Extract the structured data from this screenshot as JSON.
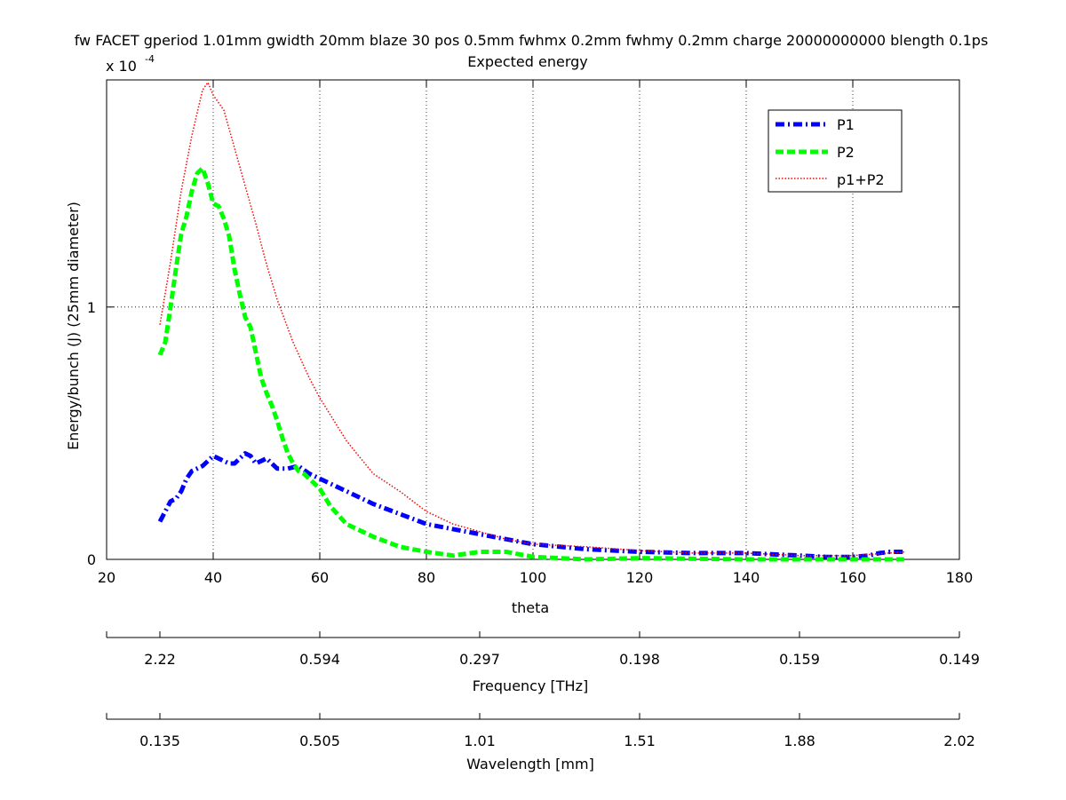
{
  "figure": {
    "title_line1": "fw FACET gperiod 1.01mm gwidth 20mm blaze 30 pos 0.5mm fwhmx 0.2mm fwhmy 0.2mm charge 20000000000 blength 0.1ps",
    "title_line2": "Expected energy",
    "exponent_base": "x 10",
    "exponent_power": "-4"
  },
  "chart_data": {
    "type": "line",
    "xlabel": "theta",
    "ylabel": "Energy/bunch (J) (25mm diameter)",
    "xlim": [
      20,
      180
    ],
    "ylim": [
      0,
      1.9
    ],
    "y_scale_factor": 0.0001,
    "xticks": [
      20,
      40,
      60,
      80,
      100,
      120,
      140,
      160,
      180
    ],
    "xtick_labels": [
      "20",
      "40",
      "60",
      "80",
      "100",
      "120",
      "140",
      "160",
      "180"
    ],
    "yticks": [
      0,
      1
    ],
    "ytick_labels": [
      "0",
      "1"
    ],
    "grid": true,
    "legend_position": "top-right",
    "series": [
      {
        "name": "P1",
        "color": "#0000ff",
        "style": "dashdot",
        "x": [
          30,
          31,
          32,
          33,
          34,
          35,
          36,
          37,
          38,
          39,
          40,
          41,
          42,
          43,
          44,
          45,
          46,
          47,
          48,
          49,
          50,
          52,
          54,
          56,
          58,
          60,
          65,
          70,
          75,
          80,
          85,
          90,
          95,
          100,
          110,
          120,
          130,
          140,
          150,
          155,
          160,
          163,
          165,
          167,
          170
        ],
        "values": [
          0.15,
          0.19,
          0.23,
          0.24,
          0.27,
          0.32,
          0.35,
          0.36,
          0.37,
          0.39,
          0.41,
          0.4,
          0.39,
          0.38,
          0.38,
          0.4,
          0.42,
          0.41,
          0.38,
          0.39,
          0.4,
          0.36,
          0.36,
          0.37,
          0.34,
          0.32,
          0.27,
          0.22,
          0.18,
          0.14,
          0.12,
          0.1,
          0.08,
          0.06,
          0.04,
          0.03,
          0.025,
          0.025,
          0.015,
          0.01,
          0.01,
          0.015,
          0.025,
          0.03,
          0.03
        ]
      },
      {
        "name": "P2",
        "color": "#00ff00",
        "style": "dashed",
        "x": [
          30,
          31,
          32,
          33,
          34,
          35,
          36,
          37,
          38,
          39,
          40,
          41,
          42,
          43,
          44,
          45,
          46,
          47,
          48,
          49,
          50,
          51,
          52,
          53,
          54,
          55,
          56,
          57,
          58,
          60,
          62,
          65,
          70,
          75,
          80,
          85,
          90,
          95,
          100,
          110,
          120,
          140,
          160,
          170
        ],
        "values": [
          0.81,
          0.86,
          1.0,
          1.15,
          1.29,
          1.36,
          1.46,
          1.53,
          1.55,
          1.49,
          1.41,
          1.4,
          1.35,
          1.28,
          1.15,
          1.05,
          0.96,
          0.92,
          0.82,
          0.72,
          0.66,
          0.61,
          0.55,
          0.48,
          0.42,
          0.38,
          0.35,
          0.34,
          0.32,
          0.28,
          0.21,
          0.14,
          0.09,
          0.05,
          0.03,
          0.015,
          0.03,
          0.03,
          0.01,
          0.0,
          0.005,
          0.0,
          0.0,
          0.0
        ]
      },
      {
        "name": "p1+P2",
        "color": "#ff0000",
        "style": "dotted",
        "x": [
          30,
          32,
          34,
          36,
          38,
          39,
          40,
          42,
          44,
          46,
          48,
          50,
          52,
          55,
          58,
          60,
          65,
          70,
          75,
          80,
          85,
          90,
          95,
          100,
          110,
          120,
          130,
          140,
          150,
          160,
          170
        ],
        "values": [
          0.93,
          1.18,
          1.46,
          1.68,
          1.86,
          1.89,
          1.84,
          1.78,
          1.63,
          1.48,
          1.33,
          1.17,
          1.03,
          0.86,
          0.72,
          0.64,
          0.47,
          0.34,
          0.27,
          0.19,
          0.14,
          0.11,
          0.08,
          0.06,
          0.05,
          0.035,
          0.025,
          0.025,
          0.015,
          0.015,
          0.03
        ]
      }
    ],
    "frequency_axis": {
      "label": "Frequency [THz]",
      "tick_labels": [
        "2.22",
        "0.594",
        "0.297",
        "0.198",
        "0.159",
        "0.149"
      ]
    },
    "wavelength_axis": {
      "label": "Wavelength [mm]",
      "tick_labels": [
        "0.135",
        "0.505",
        "1.01",
        "1.51",
        "1.88",
        "2.02"
      ]
    }
  }
}
